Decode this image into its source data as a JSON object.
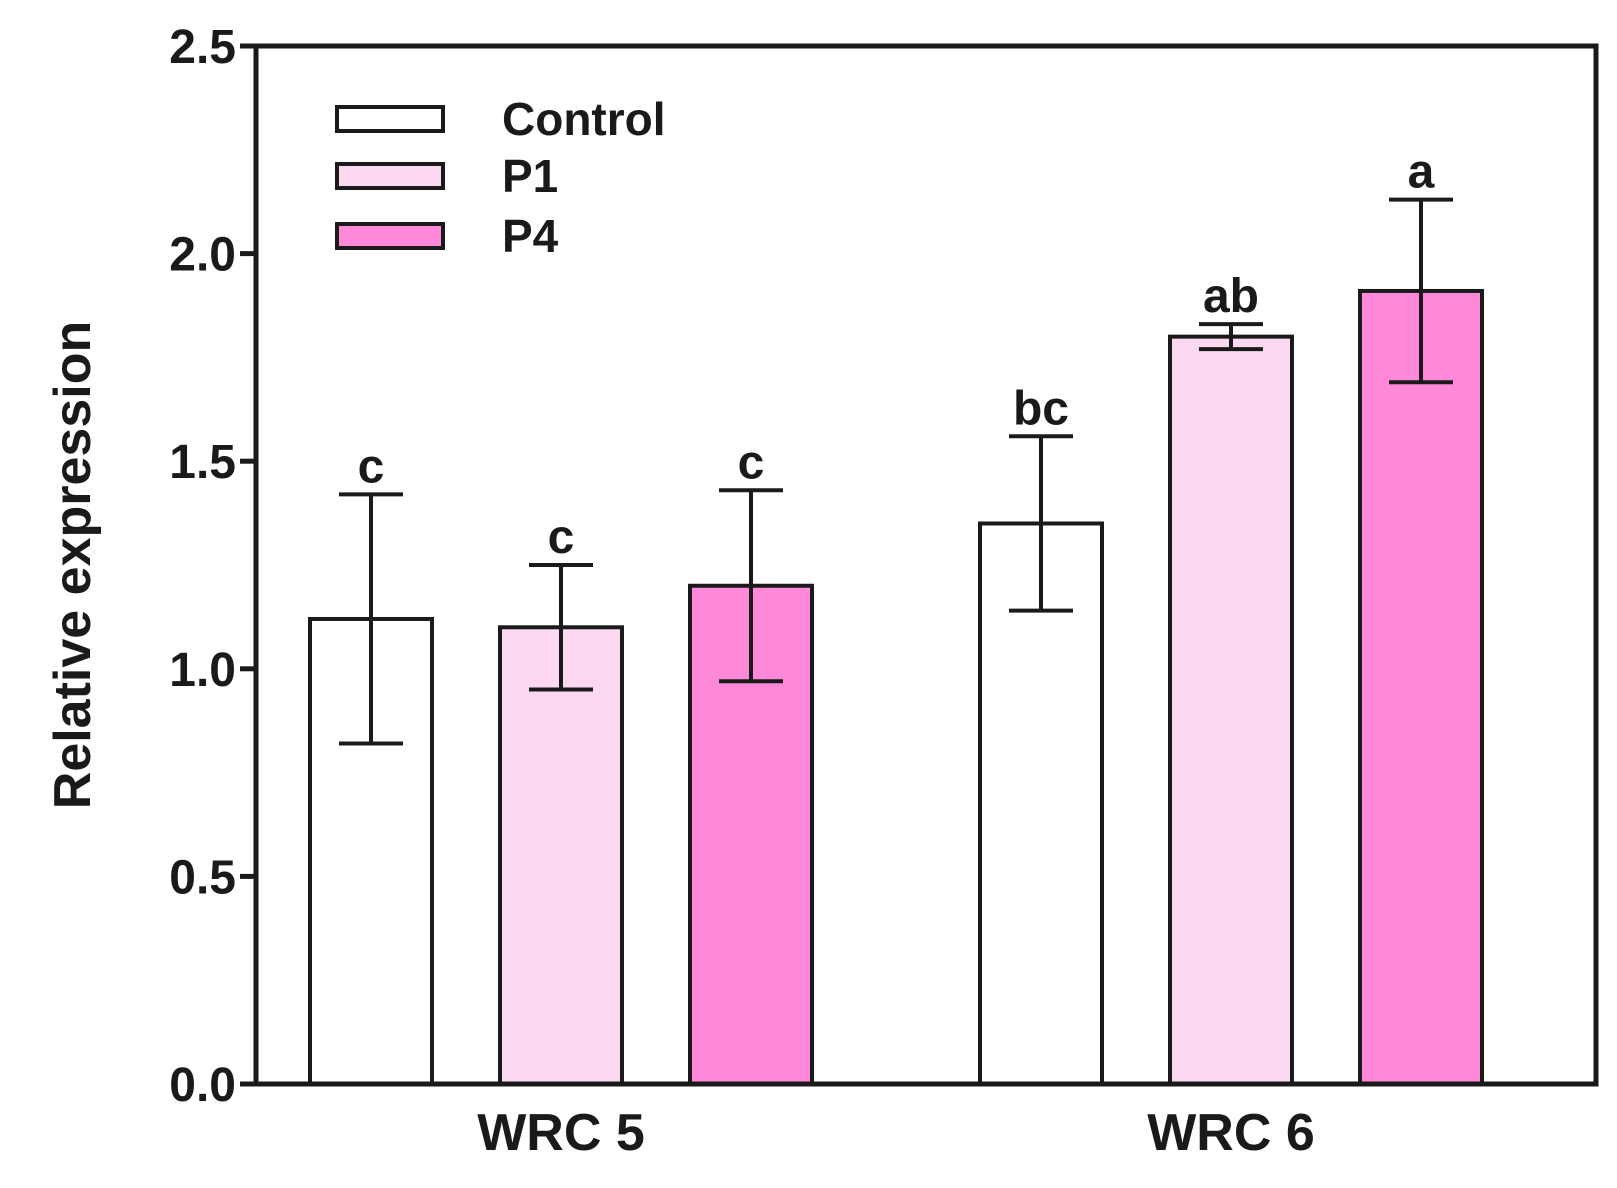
{
  "chart_data": {
    "type": "bar",
    "title": "",
    "xlabel": "",
    "ylabel": "Relative expression",
    "ylim": [
      0,
      2.5
    ],
    "yticks": [
      "0.0",
      "0.5",
      "1.0",
      "1.5",
      "2.0",
      "2.5"
    ],
    "categories": [
      "WRC 5",
      "WRC 6"
    ],
    "legend_position": "top-left",
    "series": [
      {
        "name": "Control",
        "color": "#ffffff",
        "values": [
          1.12,
          1.35
        ],
        "errors": [
          0.3,
          0.21
        ],
        "labels": [
          "c",
          "bc"
        ]
      },
      {
        "name": "P1",
        "color": "#fdd9f1",
        "values": [
          1.1,
          1.8
        ],
        "errors": [
          0.15,
          0.03
        ],
        "labels": [
          "c",
          "ab"
        ]
      },
      {
        "name": "P4",
        "color": "#ff88d8",
        "values": [
          1.2,
          1.91
        ],
        "errors": [
          0.23,
          0.22
        ],
        "labels": [
          "c",
          "a"
        ]
      }
    ]
  }
}
